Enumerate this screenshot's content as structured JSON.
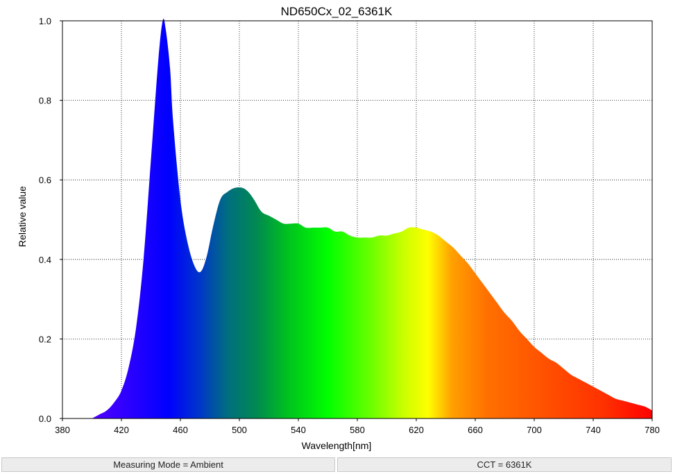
{
  "chart_data": {
    "type": "area",
    "title": "ND650Cx_02_6361K",
    "xlabel": "Wavelength[nm]",
    "ylabel": "Relative value",
    "xlim": [
      380,
      780
    ],
    "ylim": [
      0,
      1.0
    ],
    "xticks": [
      380,
      420,
      460,
      500,
      540,
      580,
      620,
      660,
      700,
      740,
      780
    ],
    "yticks": [
      0.0,
      0.2,
      0.4,
      0.6,
      0.8,
      1.0
    ],
    "xtick_labels": [
      "380",
      "420",
      "460",
      "500",
      "540",
      "580",
      "620",
      "660",
      "700",
      "740",
      "780"
    ],
    "ytick_labels": [
      "0.0",
      "0.2",
      "0.4",
      "0.6",
      "0.8",
      "1.0"
    ],
    "grid": true,
    "fill": "spectral color gradient",
    "x": [
      400,
      405,
      410,
      415,
      420,
      425,
      430,
      435,
      440,
      445,
      448,
      450,
      453,
      455,
      460,
      465,
      470,
      474,
      478,
      482,
      487,
      492,
      497,
      502,
      506,
      510,
      515,
      520,
      525,
      530,
      535,
      540,
      545,
      550,
      555,
      560,
      565,
      570,
      575,
      580,
      585,
      590,
      595,
      600,
      605,
      610,
      615,
      620,
      625,
      630,
      635,
      640,
      645,
      650,
      655,
      660,
      665,
      670,
      675,
      680,
      685,
      690,
      695,
      700,
      705,
      710,
      715,
      720,
      725,
      730,
      735,
      740,
      745,
      750,
      755,
      760,
      765,
      770,
      775,
      780
    ],
    "y": [
      0.0,
      0.01,
      0.02,
      0.04,
      0.07,
      0.13,
      0.23,
      0.4,
      0.65,
      0.9,
      1.0,
      0.98,
      0.88,
      0.75,
      0.55,
      0.44,
      0.38,
      0.37,
      0.41,
      0.48,
      0.55,
      0.57,
      0.58,
      0.58,
      0.57,
      0.55,
      0.52,
      0.51,
      0.5,
      0.49,
      0.49,
      0.49,
      0.48,
      0.48,
      0.48,
      0.48,
      0.47,
      0.47,
      0.46,
      0.455,
      0.455,
      0.455,
      0.46,
      0.46,
      0.465,
      0.47,
      0.48,
      0.48,
      0.475,
      0.47,
      0.46,
      0.445,
      0.43,
      0.41,
      0.39,
      0.365,
      0.34,
      0.315,
      0.29,
      0.265,
      0.245,
      0.22,
      0.2,
      0.18,
      0.165,
      0.15,
      0.14,
      0.125,
      0.11,
      0.1,
      0.09,
      0.08,
      0.07,
      0.06,
      0.05,
      0.045,
      0.04,
      0.035,
      0.03,
      0.02
    ]
  },
  "status": {
    "measuring_mode": "Measuring Mode = Ambient",
    "cct": "CCT = 6361K"
  }
}
